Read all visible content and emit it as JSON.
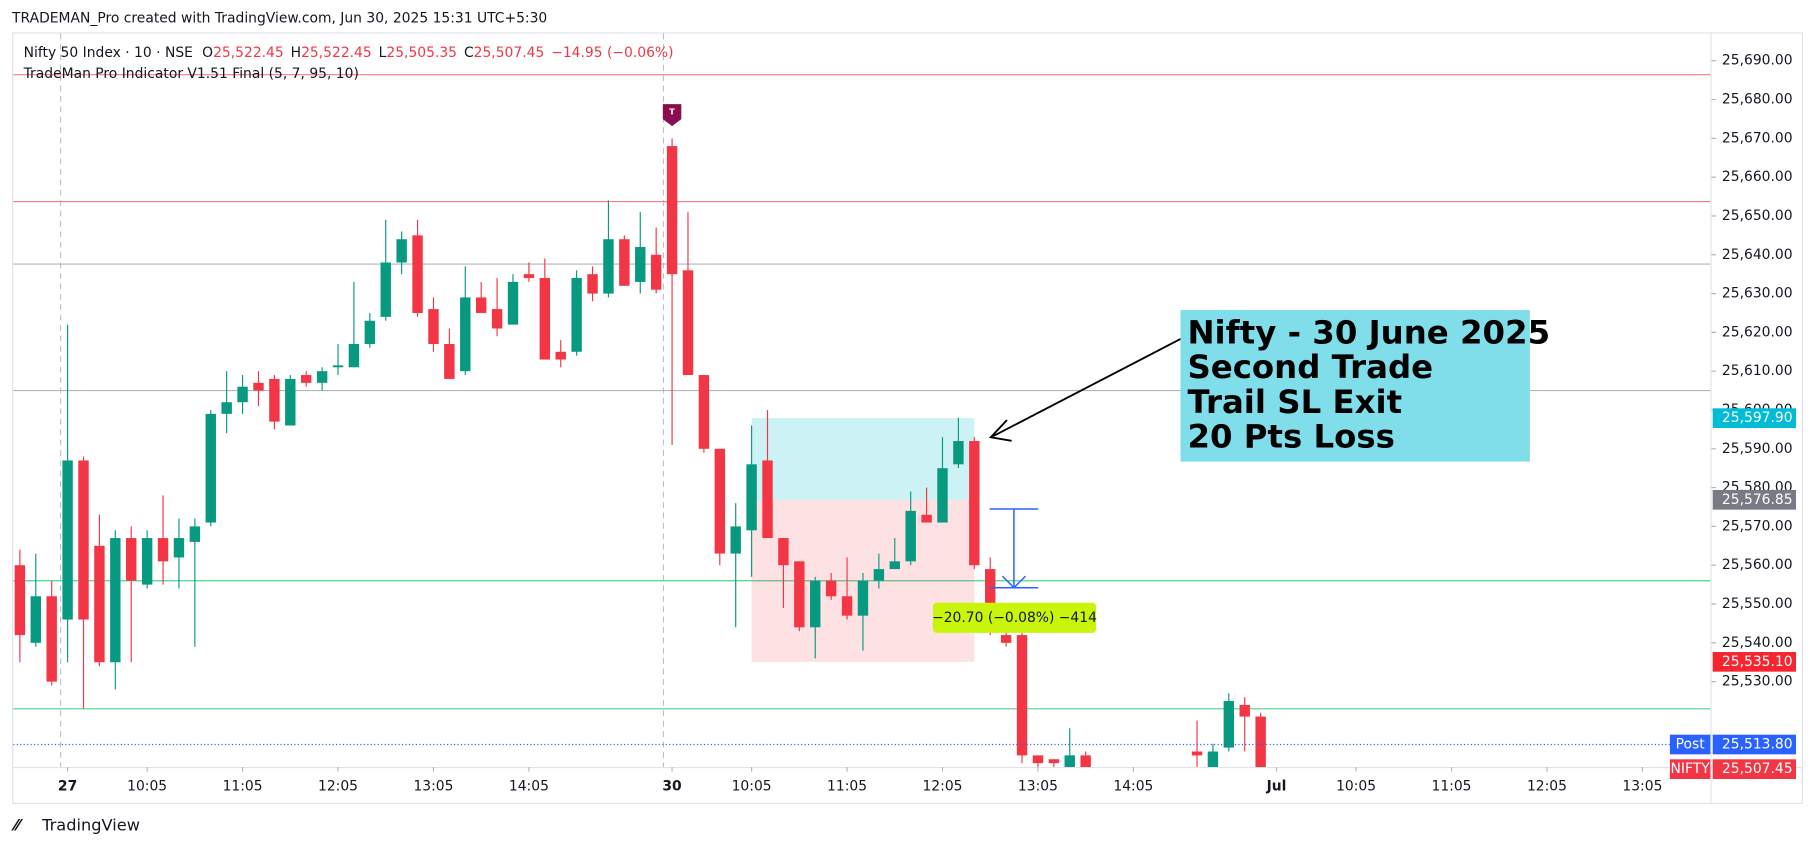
{
  "chart_data": {
    "type": "candlestick",
    "watermark": "TRADEMAN_Pro created with TradingView.com, Jun 30, 2025 15:31 UTC+5:30",
    "symbol": "Nifty 50 Index · 10 · NSE",
    "ohlc_header": [
      {
        "key": "O",
        "text": "25,522.45"
      },
      {
        "key": "H",
        "text": "25,522.45"
      },
      {
        "key": "L",
        "text": "25,505.35"
      },
      {
        "key": "C",
        "text": "25,507.45"
      }
    ],
    "change": "−14.95 (−0.06%)",
    "indicator": "TradeMan Pro Indicator V1.51 Final (5, 7, 95, 10)",
    "brand": "TradingView",
    "up_color": "#089981",
    "down_color": "#f23645",
    "candles": {
      "x": [
        -3,
        -2,
        -1,
        0,
        1,
        2,
        3,
        4,
        5,
        6,
        7,
        8,
        9,
        10,
        11,
        12,
        13,
        14,
        15,
        16,
        17,
        18,
        19,
        20,
        21,
        22,
        23,
        24,
        25,
        26,
        27,
        28,
        29,
        30,
        31,
        32,
        33,
        34,
        35,
        36,
        37,
        38,
        39,
        40,
        41,
        42,
        43,
        44,
        45,
        46,
        47,
        48,
        49,
        50,
        51,
        52,
        53,
        54,
        55,
        56,
        57,
        58,
        59,
        60,
        61,
        62,
        63,
        64,
        71,
        72,
        73,
        74,
        75
      ],
      "open": [
        25560,
        25540,
        25552,
        25546,
        25587,
        25565,
        25535,
        25567,
        25555,
        25567,
        25562,
        25566,
        25571,
        25599,
        25602,
        25607,
        25608,
        25596,
        25609,
        25607,
        25611,
        25611,
        25617,
        25624,
        25638,
        25645,
        25626,
        25617,
        25610,
        25629,
        25626,
        25622,
        25635,
        25634,
        25615,
        25615,
        25635,
        25630,
        25644,
        25633,
        25640,
        25668,
        25636,
        25609,
        25590,
        25563,
        25569,
        25587,
        25567,
        25561,
        25544,
        25556,
        25552,
        25547,
        25556,
        25559,
        25561,
        25573,
        25571,
        25586,
        25592,
        25559,
        25542,
        25542,
        25511,
        25510,
        25508,
        25511,
        25512,
        25507,
        25513,
        25524,
        25521
      ],
      "high": [
        25564,
        25563,
        25556,
        25622,
        25588,
        25573,
        25569,
        25570,
        25569,
        25578,
        25572,
        25572,
        25600,
        25610,
        25609,
        25610,
        25609,
        25609,
        25610,
        25611,
        25617,
        25633,
        25625,
        25649,
        25646,
        25649,
        25629,
        25621,
        25637,
        25633,
        25634,
        25635,
        25638,
        25639,
        25618,
        25636,
        25637,
        25654,
        25645,
        25651,
        25647,
        25670,
        25651,
        25609,
        25590,
        25576,
        25596,
        25600,
        25567,
        25561,
        25557,
        25558,
        25562,
        25558,
        25563,
        25567,
        25579,
        25580,
        25593,
        25598,
        25593,
        25562,
        25543,
        25543,
        25511,
        25510,
        25518,
        25512,
        25520,
        25514,
        25527,
        25526,
        25522
      ],
      "low": [
        25535,
        25539,
        25529,
        25535,
        25523,
        25534,
        25528,
        25535,
        25554,
        25555,
        25554,
        25539,
        25570,
        25594,
        25599,
        25601,
        25595,
        25596,
        25606,
        25605,
        25609,
        25611,
        25616,
        25623,
        25635,
        25624,
        25615,
        25608,
        25609,
        25625,
        25619,
        25622,
        25633,
        25613,
        25611,
        25614,
        25628,
        25629,
        25632,
        25630,
        25630,
        25591,
        25609,
        25589,
        25560,
        25544,
        25557,
        25567,
        25549,
        25543,
        25536,
        25551,
        25546,
        25538,
        25554,
        25559,
        25560,
        25571,
        25571,
        25585,
        25559,
        25542,
        25539,
        25509,
        25508,
        25508,
        25507,
        25507,
        25507,
        25506,
        25512,
        25512,
        25505
      ],
      "close": [
        25542,
        25552,
        25530,
        25587,
        25546,
        25535,
        25567,
        25556,
        25567,
        25561,
        25567,
        25570,
        25599,
        25602,
        25606,
        25605,
        25597,
        25608,
        25607,
        25610,
        25611.5,
        25617,
        25623,
        25638,
        25644,
        25625,
        25617,
        25608,
        25629,
        25625,
        25621,
        25633,
        25634,
        25613,
        25613,
        25634,
        25630,
        25644,
        25632,
        25642,
        25631,
        25635,
        25609,
        25590,
        25563,
        25570,
        25586,
        25567,
        25560,
        25544,
        25556,
        25552,
        25547,
        25556,
        25559,
        25561,
        25574,
        25571,
        25585,
        25592,
        25560,
        25543,
        25540,
        25511,
        25509,
        25509,
        25511,
        25508,
        25511,
        25512,
        25525,
        25521,
        25508
      ]
    },
    "ylim": [
      25508.0,
      25697.0
    ],
    "yticks": [
      {
        "value": 25530,
        "label": "25,530.00"
      },
      {
        "value": 25540,
        "label": "25,540.00"
      },
      {
        "value": 25550,
        "label": "25,550.00"
      },
      {
        "value": 25560,
        "label": "25,560.00"
      },
      {
        "value": 25570,
        "label": "25,570.00"
      },
      {
        "value": 25580,
        "label": "25,580.00"
      },
      {
        "value": 25590,
        "label": "25,590.00"
      },
      {
        "value": 25600,
        "label": "25,600.00"
      },
      {
        "value": 25610,
        "label": "25,610.00"
      },
      {
        "value": 25620,
        "label": "25,620.00"
      },
      {
        "value": 25630,
        "label": "25,630.00"
      },
      {
        "value": 25640,
        "label": "25,640.00"
      },
      {
        "value": 25650,
        "label": "25,650.00"
      },
      {
        "value": 25660,
        "label": "25,660.00"
      },
      {
        "value": 25670,
        "label": "25,670.00"
      },
      {
        "value": 25680,
        "label": "25,680.00"
      },
      {
        "value": 25690,
        "label": "25,690.00"
      }
    ],
    "xticks": [
      {
        "value": 0,
        "label": "27"
      },
      {
        "value": 5,
        "label": "10:05"
      },
      {
        "value": 11,
        "label": "11:05"
      },
      {
        "value": 17,
        "label": "12:05"
      },
      {
        "value": 23,
        "label": "13:05"
      },
      {
        "value": 29,
        "label": "14:05"
      },
      {
        "value": 38,
        "label": "30"
      },
      {
        "value": 43,
        "label": "10:05"
      },
      {
        "value": 49,
        "label": "11:05"
      },
      {
        "value": 55,
        "label": "12:05"
      },
      {
        "value": 61,
        "label": "13:05"
      },
      {
        "value": 67,
        "label": "14:05"
      },
      {
        "value": 76,
        "label": "Jul"
      },
      {
        "value": 81,
        "label": "10:05"
      },
      {
        "value": 87,
        "label": "11:05"
      },
      {
        "value": 93,
        "label": "12:05"
      },
      {
        "value": 99,
        "label": "13:05"
      }
    ],
    "levels": [
      {
        "value": 25686.4,
        "color": "#f77c80"
      },
      {
        "value": 25653.7,
        "color": "#f77c80"
      },
      {
        "value": 25637.6,
        "color": "#b2b5be"
      },
      {
        "value": 25605.0,
        "color": "#b2b5be"
      },
      {
        "value": 25556.0,
        "color": "#4cd48a"
      },
      {
        "value": 25523.0,
        "color": "#4cd48a"
      }
    ],
    "position": {
      "x_start": 43,
      "x_end": 57,
      "target": 25597.9,
      "entry": 25576.85,
      "stop": 25535.1
    },
    "price_labels": [
      {
        "value": 25597.9,
        "label": "25,597.90",
        "color": "#00bcd4"
      },
      {
        "value": 25576.85,
        "label": "25,576.85",
        "color": "#787b86"
      },
      {
        "value": 25535.1,
        "label": "25,535.10",
        "color": "#f7252f"
      },
      {
        "value": 25513.8,
        "label": "25,513.80",
        "color": "#2962ff",
        "tag": "Post"
      },
      {
        "value": 25507.45,
        "label": "25,507.45",
        "color": "#f23645",
        "tag": "NIFTY"
      }
    ],
    "marker": {
      "x": 38,
      "label": "T"
    },
    "annotation": [
      "Nifty - 30 June 2025",
      "Second Trade",
      "Trail SL Exit",
      "20 Pts Loss"
    ],
    "measure_label": "−20.70 (−0.08%) −414"
  }
}
